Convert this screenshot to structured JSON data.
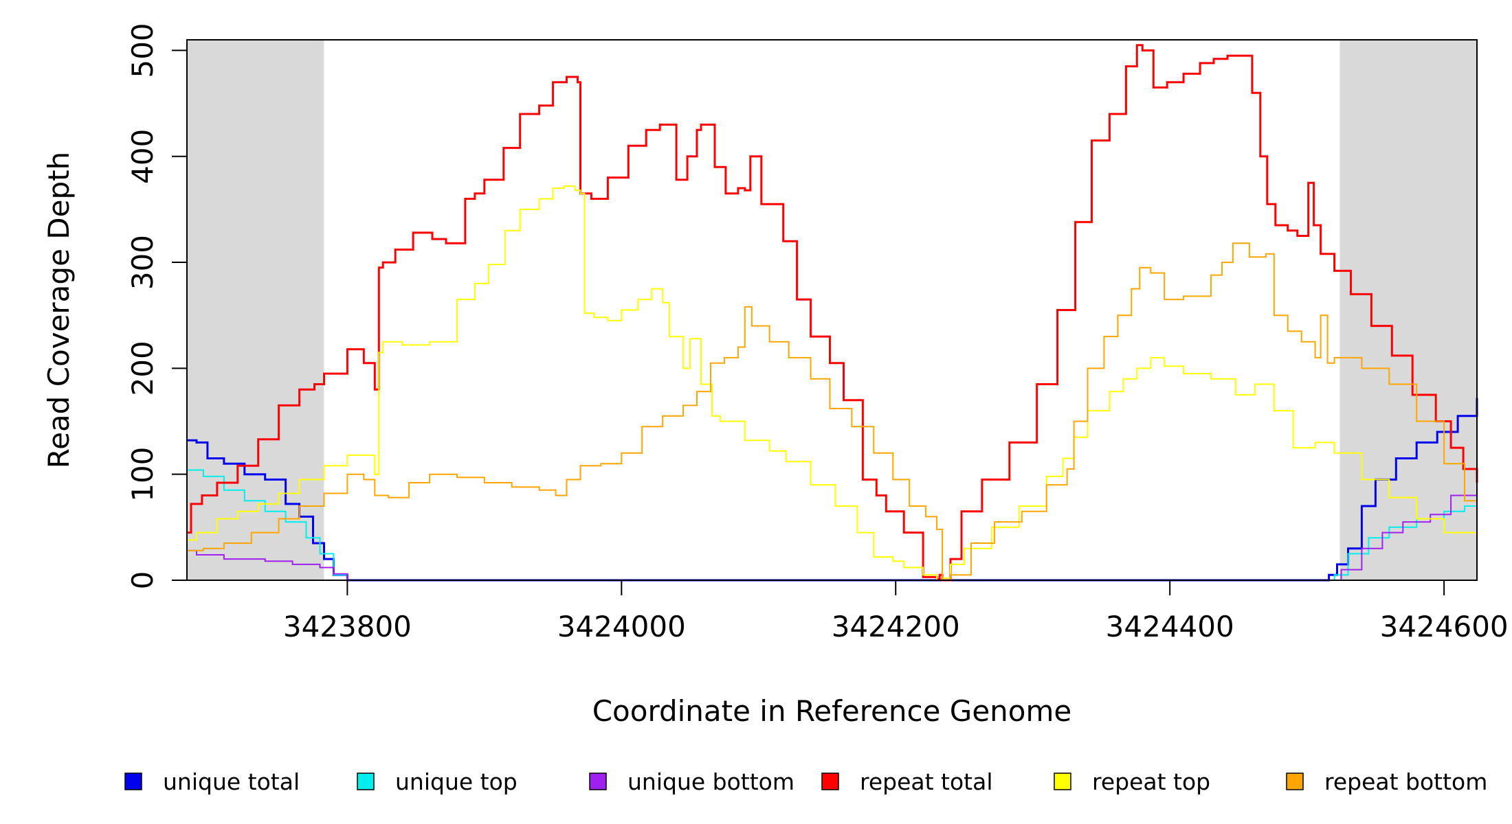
{
  "chart_data": {
    "type": "line",
    "title": "",
    "xlabel": "Coordinate in Reference Genome",
    "ylabel": "Read Coverage Depth",
    "xlim": [
      3423683,
      3424624
    ],
    "ylim": [
      0,
      510
    ],
    "xticks": [
      3423800,
      3424000,
      3424200,
      3424400,
      3424600
    ],
    "xtick_labels": [
      "3423800",
      "3424000",
      "3424200",
      "3424400",
      "3424600"
    ],
    "yticks": [
      0,
      100,
      200,
      300,
      400,
      500
    ],
    "ytick_labels": [
      "0",
      "100",
      "200",
      "300",
      "400",
      "500"
    ],
    "shaded_regions": [
      [
        3423683,
        3423783
      ],
      [
        3424524,
        3424624
      ]
    ],
    "legend_position": "bottom",
    "series": [
      {
        "name": "unique total",
        "color": "#0000ee",
        "width": 3,
        "x": [
          3423683,
          3423690,
          3423698,
          3423710,
          3423725,
          3423740,
          3423755,
          3423765,
          3423775,
          3423783,
          3423790,
          3423800,
          3423850,
          3424000,
          3424200,
          3424400,
          3424510,
          3424516,
          3424522,
          3424530,
          3424540,
          3424550,
          3424565,
          3424580,
          3424595,
          3424610,
          3424624
        ],
        "y": [
          132,
          130,
          115,
          110,
          100,
          95,
          72,
          60,
          35,
          20,
          5,
          0,
          0,
          0,
          0,
          0,
          0,
          5,
          15,
          30,
          70,
          95,
          115,
          130,
          140,
          155,
          172
        ]
      },
      {
        "name": "unique top",
        "color": "#00eeee",
        "width": 2,
        "x": [
          3423683,
          3423695,
          3423710,
          3423725,
          3423740,
          3423755,
          3423770,
          3423780,
          3423790,
          3423800,
          3424000,
          3424200,
          3424400,
          3424512,
          3424520,
          3424530,
          3424545,
          3424560,
          3424580,
          3424600,
          3424615,
          3424624
        ],
        "y": [
          104,
          98,
          85,
          75,
          65,
          55,
          40,
          25,
          5,
          0,
          0,
          0,
          0,
          0,
          5,
          25,
          40,
          50,
          58,
          65,
          70,
          78
        ]
      },
      {
        "name": "unique bottom",
        "color": "#a020f0",
        "width": 2,
        "x": [
          3423683,
          3423690,
          3423710,
          3423740,
          3423760,
          3423780,
          3423790,
          3423800,
          3424000,
          3424200,
          3424400,
          3424515,
          3424525,
          3424540,
          3424555,
          3424570,
          3424590,
          3424605,
          3424624
        ],
        "y": [
          28,
          24,
          20,
          18,
          15,
          12,
          6,
          0,
          0,
          0,
          0,
          0,
          10,
          30,
          45,
          55,
          62,
          80,
          92
        ]
      },
      {
        "name": "repeat total",
        "color": "#ff0000",
        "width": 3,
        "x": [
          3423683,
          3423686,
          3423694,
          3423705,
          3423720,
          3423735,
          3423750,
          3423765,
          3423776,
          3423783,
          3423800,
          3423812,
          3423820,
          3423823,
          3423826,
          3423835,
          3423848,
          3423862,
          3423872,
          3423886,
          3423893,
          3423900,
          3423914,
          3423926,
          3423940,
          3423950,
          3423960,
          3423968,
          3423970,
          3423978,
          3423990,
          3424005,
          3424018,
          3424028,
          3424040,
          3424048,
          3424055,
          3424058,
          3424068,
          3424076,
          3424085,
          3424090,
          3424094,
          3424102,
          3424118,
          3424128,
          3424138,
          3424152,
          3424162,
          3424176,
          3424186,
          3424193,
          3424206,
          3424220,
          3424230,
          3424232,
          3424234,
          3424240,
          3424248,
          3424263,
          3424283,
          3424303,
          3424318,
          3424331,
          3424343,
          3424356,
          3424368,
          3424376,
          3424380,
          3424388,
          3424398,
          3424410,
          3424422,
          3424432,
          3424442,
          3424460,
          3424466,
          3424471,
          3424477,
          3424486,
          3424493,
          3424501,
          3424505,
          3424510,
          3424520,
          3424532,
          3424547,
          3424562,
          3424577,
          3424594,
          3424605,
          3424614,
          3424624
        ],
        "y": [
          45,
          72,
          80,
          92,
          108,
          133,
          165,
          180,
          185,
          195,
          218,
          205,
          180,
          295,
          300,
          312,
          328,
          322,
          318,
          360,
          365,
          378,
          408,
          440,
          448,
          470,
          475,
          470,
          365,
          360,
          380,
          410,
          425,
          430,
          378,
          400,
          425,
          430,
          390,
          365,
          370,
          368,
          400,
          355,
          320,
          265,
          230,
          205,
          170,
          95,
          80,
          65,
          45,
          3,
          1,
          5,
          0,
          20,
          65,
          95,
          130,
          185,
          255,
          338,
          415,
          440,
          485,
          505,
          500,
          465,
          470,
          478,
          488,
          492,
          495,
          460,
          400,
          355,
          335,
          330,
          325,
          375,
          335,
          308,
          292,
          270,
          240,
          212,
          175,
          150,
          125,
          105,
          92
        ]
      },
      {
        "name": "repeat top",
        "color": "#ffff00",
        "width": 2,
        "x": [
          3423683,
          3423690,
          3423705,
          3423720,
          3423735,
          3423750,
          3423765,
          3423783,
          3423800,
          3423812,
          3423820,
          3423823,
          3423826,
          3423840,
          3423860,
          3423880,
          3423893,
          3423903,
          3423915,
          3423926,
          3423940,
          3423950,
          3423958,
          3423966,
          3423970,
          3423973,
          3423980,
          3423990,
          3424000,
          3424012,
          3424022,
          3424030,
          3424035,
          3424045,
          3424050,
          3424058,
          3424066,
          3424072,
          3424090,
          3424108,
          3424120,
          3424138,
          3424156,
          3424172,
          3424184,
          3424198,
          3424206,
          3424220,
          3424230,
          3424234,
          3424240,
          3424250,
          3424270,
          3424290,
          3424310,
          3424322,
          3424330,
          3424340,
          3424356,
          3424366,
          3424376,
          3424386,
          3424396,
          3424410,
          3424430,
          3424448,
          3424462,
          3424476,
          3424490,
          3424506,
          3424520,
          3424540,
          3424560,
          3424580,
          3424600,
          3424624
        ],
        "y": [
          38,
          45,
          58,
          65,
          72,
          82,
          95,
          108,
          118,
          118,
          100,
          215,
          225,
          222,
          225,
          265,
          280,
          298,
          330,
          350,
          360,
          370,
          372,
          368,
          365,
          252,
          248,
          245,
          255,
          265,
          275,
          262,
          230,
          200,
          228,
          185,
          155,
          150,
          132,
          122,
          112,
          90,
          70,
          45,
          22,
          18,
          12,
          5,
          0,
          2,
          15,
          30,
          50,
          70,
          98,
          115,
          135,
          160,
          178,
          190,
          200,
          210,
          202,
          195,
          190,
          175,
          185,
          160,
          125,
          130,
          120,
          95,
          78,
          58,
          45,
          20
        ]
      },
      {
        "name": "repeat bottom",
        "color": "#ffa500",
        "width": 2,
        "x": [
          3423683,
          3423695,
          3423710,
          3423730,
          3423750,
          3423765,
          3423783,
          3423800,
          3423812,
          3423820,
          3423830,
          3423845,
          3423860,
          3423880,
          3423900,
          3423920,
          3423940,
          3423952,
          3423960,
          3423970,
          3423985,
          3424000,
          3424015,
          3424030,
          3424045,
          3424055,
          3424065,
          3424075,
          3424085,
          3424090,
          3424095,
          3424108,
          3424122,
          3424138,
          3424152,
          3424168,
          3424184,
          3424198,
          3424210,
          3424222,
          3424230,
          3424234,
          3424240,
          3424255,
          3424272,
          3424292,
          3424310,
          3424325,
          3424330,
          3424340,
          3424352,
          3424362,
          3424372,
          3424378,
          3424386,
          3424396,
          3424410,
          3424430,
          3424438,
          3424446,
          3424458,
          3424470,
          3424476,
          3424486,
          3424496,
          3424506,
          3424510,
          3424515,
          3424520,
          3424540,
          3424560,
          3424580,
          3424600,
          3424615,
          3424624
        ],
        "y": [
          28,
          30,
          35,
          45,
          58,
          70,
          82,
          100,
          95,
          80,
          78,
          92,
          100,
          97,
          92,
          88,
          85,
          80,
          95,
          108,
          110,
          120,
          145,
          155,
          165,
          178,
          205,
          210,
          220,
          258,
          240,
          225,
          210,
          190,
          162,
          145,
          120,
          95,
          70,
          60,
          48,
          0,
          5,
          35,
          55,
          65,
          90,
          105,
          150,
          200,
          230,
          250,
          275,
          295,
          290,
          265,
          268,
          288,
          300,
          318,
          305,
          308,
          250,
          235,
          225,
          210,
          250,
          205,
          210,
          200,
          185,
          150,
          110,
          75,
          72
        ]
      }
    ]
  }
}
